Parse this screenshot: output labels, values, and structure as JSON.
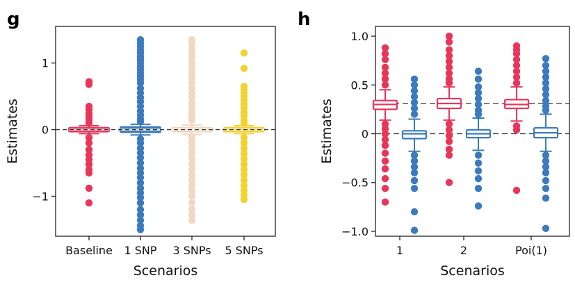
{
  "chart_data": [
    {
      "panel": "g",
      "type": "box",
      "xlabel": "Scenarios",
      "ylabel": "Estimates",
      "ylim": [
        -1.6,
        1.55
      ],
      "yticks": [
        -1,
        0,
        1
      ],
      "ytick_labels": [
        "−1",
        "0",
        "1"
      ],
      "reference_line": 0,
      "categories": [
        "Baseline",
        "1 SNP",
        "3 SNPs",
        "5 SNPs"
      ],
      "colors": [
        "#e8365b",
        "#3b7bbd",
        "#f0d8c2",
        "#f2d233"
      ],
      "boxes": [
        {
          "q1": -0.03,
          "median": 0.0,
          "q3": 0.03,
          "whisker_low": -0.06,
          "whisker_high": 0.06,
          "outliers": [
            0.72,
            0.68,
            0.35,
            0.3,
            0.25,
            0.2,
            0.15,
            0.1,
            -0.12,
            -0.2,
            -0.3,
            -0.38,
            -0.45,
            -0.52,
            -0.6,
            -0.65,
            -0.88,
            -1.1
          ]
        },
        {
          "q1": -0.04,
          "median": 0.0,
          "q3": 0.04,
          "whisker_low": -0.08,
          "whisker_high": 0.08,
          "outliers": [
            1.35,
            1.3,
            1.25,
            1.2,
            1.15,
            1.1,
            1.05,
            1.0,
            0.95,
            0.9,
            0.85,
            0.8,
            0.75,
            0.7,
            0.62,
            0.55,
            0.48,
            0.42,
            0.35,
            0.28,
            0.22,
            0.16,
            0.12,
            -0.14,
            -0.2,
            -0.28,
            -0.35,
            -0.42,
            -0.5,
            -0.58,
            -0.65,
            -0.72,
            -0.8,
            -0.88,
            -0.95,
            -1.02,
            -1.1,
            -1.2,
            -1.28,
            -1.36,
            -1.44,
            -1.5
          ]
        },
        {
          "q1": -0.03,
          "median": 0.0,
          "q3": 0.03,
          "whisker_low": -0.07,
          "whisker_high": 0.07,
          "outliers": [
            1.35,
            1.3,
            1.22,
            1.15,
            1.08,
            1.0,
            0.92,
            0.85,
            0.78,
            0.7,
            0.62,
            0.55,
            0.48,
            0.4,
            0.33,
            0.26,
            0.2,
            0.14,
            -0.12,
            -0.2,
            -0.28,
            -0.36,
            -0.44,
            -0.52,
            -0.6,
            -0.68,
            -0.76,
            -0.84,
            -0.92,
            -1.0,
            -1.1,
            -1.2,
            -1.28,
            -1.36
          ]
        },
        {
          "q1": -0.03,
          "median": 0.0,
          "q3": 0.03,
          "whisker_low": -0.06,
          "whisker_high": 0.06,
          "outliers": [
            1.15,
            0.92,
            0.65,
            0.6,
            0.55,
            0.5,
            0.44,
            0.38,
            0.32,
            0.26,
            0.2,
            0.14,
            0.1,
            -0.12,
            -0.2,
            -0.28,
            -0.36,
            -0.44,
            -0.52,
            -0.6,
            -0.68,
            -0.76,
            -0.84,
            -0.92,
            -0.98,
            -1.05
          ]
        }
      ]
    },
    {
      "panel": "h",
      "type": "box",
      "xlabel": "Scenarios",
      "ylabel": "Estimates",
      "ylim": [
        -1.05,
        1.1
      ],
      "yticks": [
        1.0,
        0.5,
        0,
        -0.5,
        -1.0
      ],
      "ytick_labels": [
        "1.0",
        "0.5",
        "0",
        "−0.5",
        "−1.0"
      ],
      "reference_lines": [
        0.31,
        0
      ],
      "categories": [
        "1",
        "2",
        "Poi(1)"
      ],
      "series_colors": [
        "#e8365b",
        "#3b7bbd"
      ],
      "groups": [
        [
          {
            "q1": 0.25,
            "median": 0.3,
            "q3": 0.34,
            "whisker_low": 0.14,
            "whisker_high": 0.45,
            "outliers": [
              0.88,
              0.82,
              0.76,
              0.68,
              0.62,
              0.56,
              0.5,
              0.1,
              0.05,
              0.0,
              -0.06,
              -0.12,
              -0.2,
              -0.28,
              -0.36,
              -0.46,
              -0.56,
              -0.7
            ]
          },
          {
            "q1": -0.05,
            "median": 0.0,
            "q3": 0.03,
            "whisker_low": -0.18,
            "whisker_high": 0.15,
            "outliers": [
              0.56,
              0.5,
              0.44,
              0.38,
              0.32,
              0.26,
              0.2,
              -0.22,
              -0.28,
              -0.34,
              -0.4,
              -0.48,
              -0.56,
              -0.8,
              -0.99
            ]
          }
        ],
        [
          {
            "q1": 0.26,
            "median": 0.31,
            "q3": 0.36,
            "whisker_low": 0.14,
            "whisker_high": 0.48,
            "outliers": [
              1.0,
              0.94,
              0.86,
              0.8,
              0.74,
              0.68,
              0.62,
              0.56,
              0.52,
              0.1,
              0.04,
              -0.02,
              -0.08,
              -0.16,
              -0.22,
              -0.5
            ]
          },
          {
            "q1": -0.04,
            "median": 0.0,
            "q3": 0.04,
            "whisker_low": -0.17,
            "whisker_high": 0.16,
            "outliers": [
              0.64,
              0.56,
              0.48,
              0.42,
              0.36,
              0.3,
              0.24,
              0.2,
              -0.22,
              -0.3,
              -0.38,
              -0.46,
              -0.56,
              -0.74
            ]
          }
        ],
        [
          {
            "q1": 0.26,
            "median": 0.3,
            "q3": 0.35,
            "whisker_low": 0.13,
            "whisker_high": 0.48,
            "outliers": [
              0.9,
              0.86,
              0.82,
              0.76,
              0.7,
              0.64,
              0.58,
              0.52,
              0.08,
              0.04,
              -0.58
            ]
          },
          {
            "q1": -0.04,
            "median": 0.01,
            "q3": 0.06,
            "whisker_low": -0.18,
            "whisker_high": 0.2,
            "outliers": [
              0.77,
              0.7,
              0.64,
              0.58,
              0.52,
              0.46,
              0.4,
              0.34,
              0.28,
              0.24,
              -0.22,
              -0.28,
              -0.34,
              -0.4,
              -0.48,
              -0.56,
              -0.66,
              -0.97
            ]
          }
        ]
      ]
    }
  ]
}
